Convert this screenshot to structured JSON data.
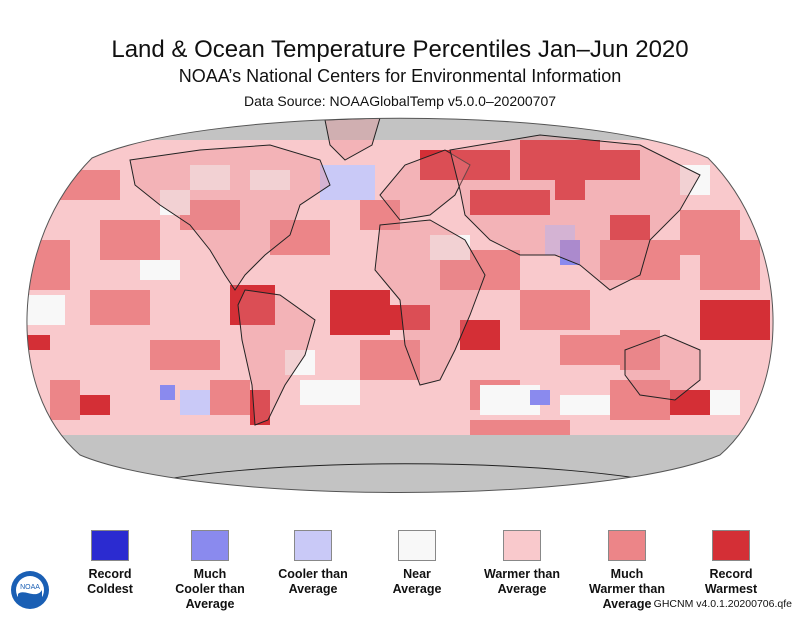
{
  "header": {
    "title": "Land & Ocean Temperature Percentiles Jan–Jun 2020",
    "subtitle": "NOAA’s National Centers for Environmental Information",
    "source": "Data Source: NOAAGlobalTemp v5.0.0–20200707"
  },
  "colors": {
    "record_coldest": "#2b2bd0",
    "much_cooler": "#8a8aee",
    "cooler": "#c9c9f7",
    "near_average": "#f8f8f8",
    "warmer": "#f9c9cc",
    "much_warmer": "#ec8588",
    "record_warmest": "#d42f36",
    "no_data": "#c3c3c3",
    "land_outline": "#222222"
  },
  "legend": [
    {
      "key": "record_coldest",
      "lines": [
        "Record",
        "Coldest"
      ]
    },
    {
      "key": "much_cooler",
      "lines": [
        "Much",
        "Cooler than",
        "Average"
      ]
    },
    {
      "key": "cooler",
      "lines": [
        "Cooler than",
        "Average"
      ]
    },
    {
      "key": "near_average",
      "lines": [
        "Near",
        "Average"
      ]
    },
    {
      "key": "warmer",
      "lines": [
        "Warmer than",
        "Average"
      ]
    },
    {
      "key": "much_warmer",
      "lines": [
        "Much",
        "Warmer than",
        "Average"
      ]
    },
    {
      "key": "record_warmest",
      "lines": [
        "Record",
        "Warmest"
      ]
    }
  ],
  "logo": {
    "icon": "noaa-logo-icon",
    "text": "NOAA"
  },
  "credit": "GHCNM v4.0.1.20200706.qfe"
}
